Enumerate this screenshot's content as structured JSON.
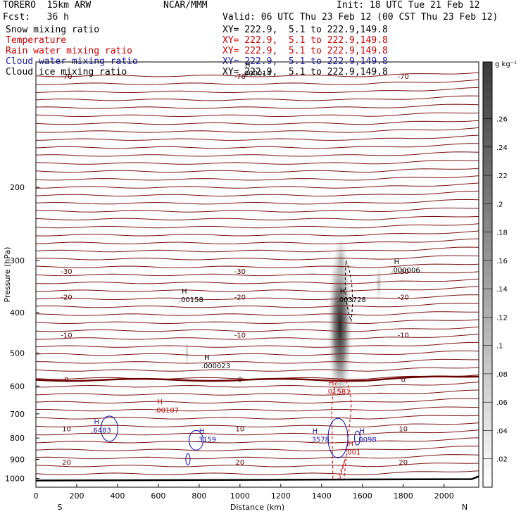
{
  "header": {
    "model": "TORERO  15km ARW",
    "org": "NCAR/MMM",
    "init": "Init: 18 UTC Tue 21 Feb 12",
    "fcst": "Fcst:   36 h",
    "valid": "Valid: 06 UTC Thu 23 Feb 12 (00 CST Thu 23 Feb 12)",
    "fields": [
      {
        "name": "Snow mixing ratio",
        "xy": "XY= 222.9,  5.1 to 222.9,149.8",
        "color": "#000000"
      },
      {
        "name": "Temperature",
        "xy": "XY= 222.9,  5.1 to 222.9,149.8",
        "color": "#cc0000"
      },
      {
        "name": "Rain water mixing ratio",
        "xy": "XY= 222.9,  5.1 to 222.9,149.8",
        "color": "#cc0000"
      },
      {
        "name": "Cloud water mixing ratio",
        "xy": "XY= 222.9,  5.1 to 222.9,149.8",
        "color": "#1a1aaa"
      },
      {
        "name": "Cloud ice mixing ratio",
        "xy": "XY= 222.9,  5.1 to 222.9,149.8",
        "color": "#000000"
      }
    ]
  },
  "chart_data": {
    "type": "heatmap",
    "xlabel": "Distance (km)",
    "ylabel": "Pressure (hPa)",
    "xlim": [
      0,
      2170
    ],
    "ylim": [
      1050,
      100
    ],
    "y_scale": "log",
    "xticks": [
      "0",
      "200",
      "400",
      "600",
      "800",
      "1000",
      "1200",
      "1400",
      "1600",
      "1800",
      "2000"
    ],
    "yticks": [
      "200",
      "300",
      "400",
      "500",
      "600",
      "700",
      "800",
      "900",
      "1000"
    ],
    "x_end_labels": {
      "left": "S",
      "right": "N"
    },
    "colorbar": {
      "unit": "g kg⁻¹",
      "ticks": [
        ".02",
        ".04",
        ".06",
        ".08",
        ".1",
        ".12",
        ".14",
        ".16",
        ".18",
        ".2",
        ".22",
        ".24",
        ".26"
      ],
      "range": [
        0,
        0.3
      ]
    },
    "temperature_contours": [
      {
        "label": "-70",
        "pressure": 108
      },
      {
        "label": "-30",
        "pressure": 318
      },
      {
        "label": "-20",
        "pressure": 366
      },
      {
        "label": "-10",
        "pressure": 452
      },
      {
        "label": "0",
        "pressure": 578
      },
      {
        "label": "10",
        "pressure": 758
      },
      {
        "label": "20",
        "pressure": 912
      }
    ],
    "maxima": [
      {
        "text": ".000014",
        "x": 1010,
        "p": 107,
        "color": "#000000"
      },
      {
        "text": ".00158",
        "x": 700,
        "p": 374,
        "color": "#000000"
      },
      {
        "text": ".003728",
        "x": 1475,
        "p": 374,
        "color": "#000000"
      },
      {
        "text": ".000006",
        "x": 1740,
        "p": 318,
        "color": "#000000"
      },
      {
        "text": ".000023",
        "x": 810,
        "p": 540,
        "color": "#000000"
      },
      {
        "text": ".01581",
        "x": 1420,
        "p": 622,
        "color": "#cc0000"
      },
      {
        "text": ".00107",
        "x": 580,
        "p": 690,
        "color": "#cc0000"
      },
      {
        "text": ".6483",
        "x": 270,
        "p": 770,
        "color": "#1a1aaa"
      },
      {
        "text": ".3159",
        "x": 785,
        "p": 810,
        "color": "#1a1aaa"
      },
      {
        "text": ".3578",
        "x": 1340,
        "p": 810,
        "color": "#1a1aaa"
      },
      {
        "text": ".0098",
        "x": 1570,
        "p": 810,
        "color": "#1a1aaa"
      },
      {
        "text": ".001",
        "x": 1515,
        "p": 870,
        "color": "#cc0000"
      }
    ]
  }
}
